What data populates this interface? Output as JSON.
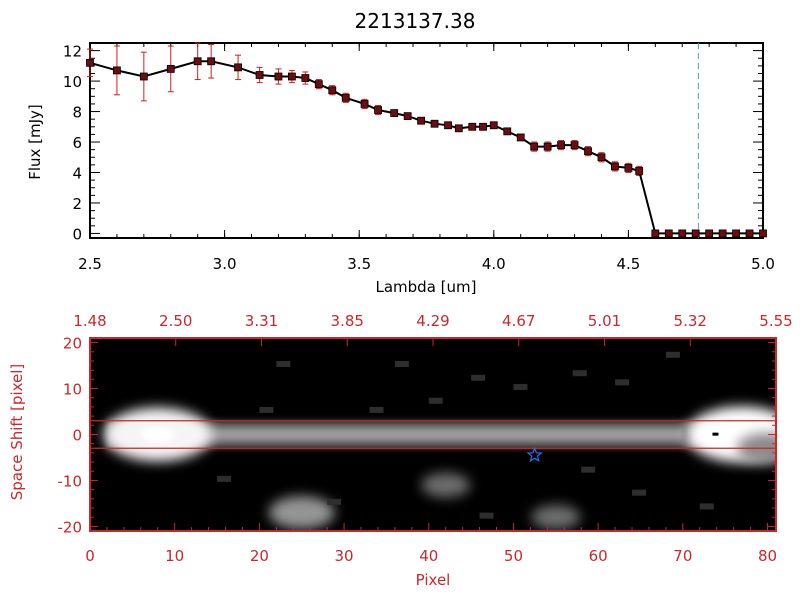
{
  "chart_data": [
    {
      "type": "line",
      "title": "2213137.38",
      "xlabel": "Lambda [um]",
      "ylabel": "Flux [mJy]",
      "xlim": [
        2.5,
        5.0
      ],
      "ylim": [
        -0.3,
        12.5
      ],
      "x_ticks": [
        "2.5",
        "3.0",
        "3.5",
        "4.0",
        "4.5",
        "5.0"
      ],
      "y_ticks": [
        "0",
        "2",
        "4",
        "6",
        "8",
        "10",
        "12"
      ],
      "grid": false,
      "colors": {
        "line": "#000000",
        "marker": "#6b0d12",
        "errorbar": "#d21e1e",
        "marker_line": "#3aa8bf"
      },
      "vertical_marker": 4.76,
      "series": [
        {
          "x": [
            2.5,
            2.6,
            2.7,
            2.8,
            2.9,
            2.95,
            3.05,
            3.13,
            3.2,
            3.25,
            3.3,
            3.35,
            3.4,
            3.45,
            3.52,
            3.57,
            3.63,
            3.68,
            3.73,
            3.78,
            3.83,
            3.87,
            3.92,
            3.96,
            4.0,
            4.05,
            4.1,
            4.15,
            4.2,
            4.25,
            4.3,
            4.35,
            4.4,
            4.45,
            4.5,
            4.54,
            4.6,
            4.65,
            4.7,
            4.75,
            4.8,
            4.85,
            4.9,
            4.95,
            5.0
          ],
          "y": [
            11.2,
            10.7,
            10.3,
            10.8,
            11.3,
            11.3,
            10.9,
            10.4,
            10.3,
            10.3,
            10.2,
            9.8,
            9.4,
            8.9,
            8.5,
            8.1,
            7.9,
            7.7,
            7.4,
            7.2,
            7.1,
            6.9,
            7.0,
            7.0,
            7.1,
            6.7,
            6.3,
            5.7,
            5.7,
            5.8,
            5.8,
            5.4,
            5.0,
            4.4,
            4.3,
            4.1,
            0.0,
            0.0,
            0.0,
            0.0,
            0.0,
            0.0,
            0.0,
            0.0,
            0.0
          ],
          "yerr": [
            0.9,
            1.6,
            1.6,
            1.5,
            1.2,
            1.1,
            0.8,
            0.5,
            0.5,
            0.4,
            0.4,
            0.3,
            0.3,
            0.3,
            0.3,
            0.3,
            0.2,
            0.2,
            0.2,
            0.2,
            0.2,
            0.2,
            0.2,
            0.2,
            0.2,
            0.2,
            0.2,
            0.3,
            0.3,
            0.3,
            0.3,
            0.3,
            0.3,
            0.3,
            0.3,
            0.3,
            0.1,
            0.1,
            0.1,
            0.1,
            0.1,
            0.1,
            0.1,
            0.1,
            0.1
          ]
        }
      ]
    },
    {
      "type": "heatmap",
      "xlabel": "Pixel",
      "ylabel": "Space Shift [pixel]",
      "xlim": [
        0,
        81
      ],
      "ylim": [
        -21,
        21
      ],
      "x_ticks": [
        "0",
        "10",
        "20",
        "30",
        "40",
        "50",
        "60",
        "70",
        "80"
      ],
      "y_ticks": [
        "20",
        "10",
        "0",
        "-10",
        "-20"
      ],
      "top_ticks": [
        "1.48",
        "2.50",
        "3.31",
        "3.85",
        "4.29",
        "4.67",
        "5.01",
        "5.32",
        "5.55"
      ],
      "extraction_window": [
        -3,
        3
      ],
      "star_marker": {
        "x": 52.5,
        "y": -4.5
      },
      "colors": {
        "axes": "#c8282d",
        "background": "#000000",
        "star": "#2f6ee6"
      },
      "blobs": [
        {
          "x": 8,
          "y": 0,
          "intensity": 0.95
        },
        {
          "x": 77,
          "y": 0,
          "intensity": 1.0
        },
        {
          "x": 25,
          "y": -17,
          "intensity": 0.45
        },
        {
          "x": 42,
          "y": -11,
          "intensity": 0.25
        },
        {
          "x": 55,
          "y": -18,
          "intensity": 0.25
        },
        {
          "x": 80,
          "y": -3,
          "intensity": 0.4
        }
      ]
    }
  ]
}
